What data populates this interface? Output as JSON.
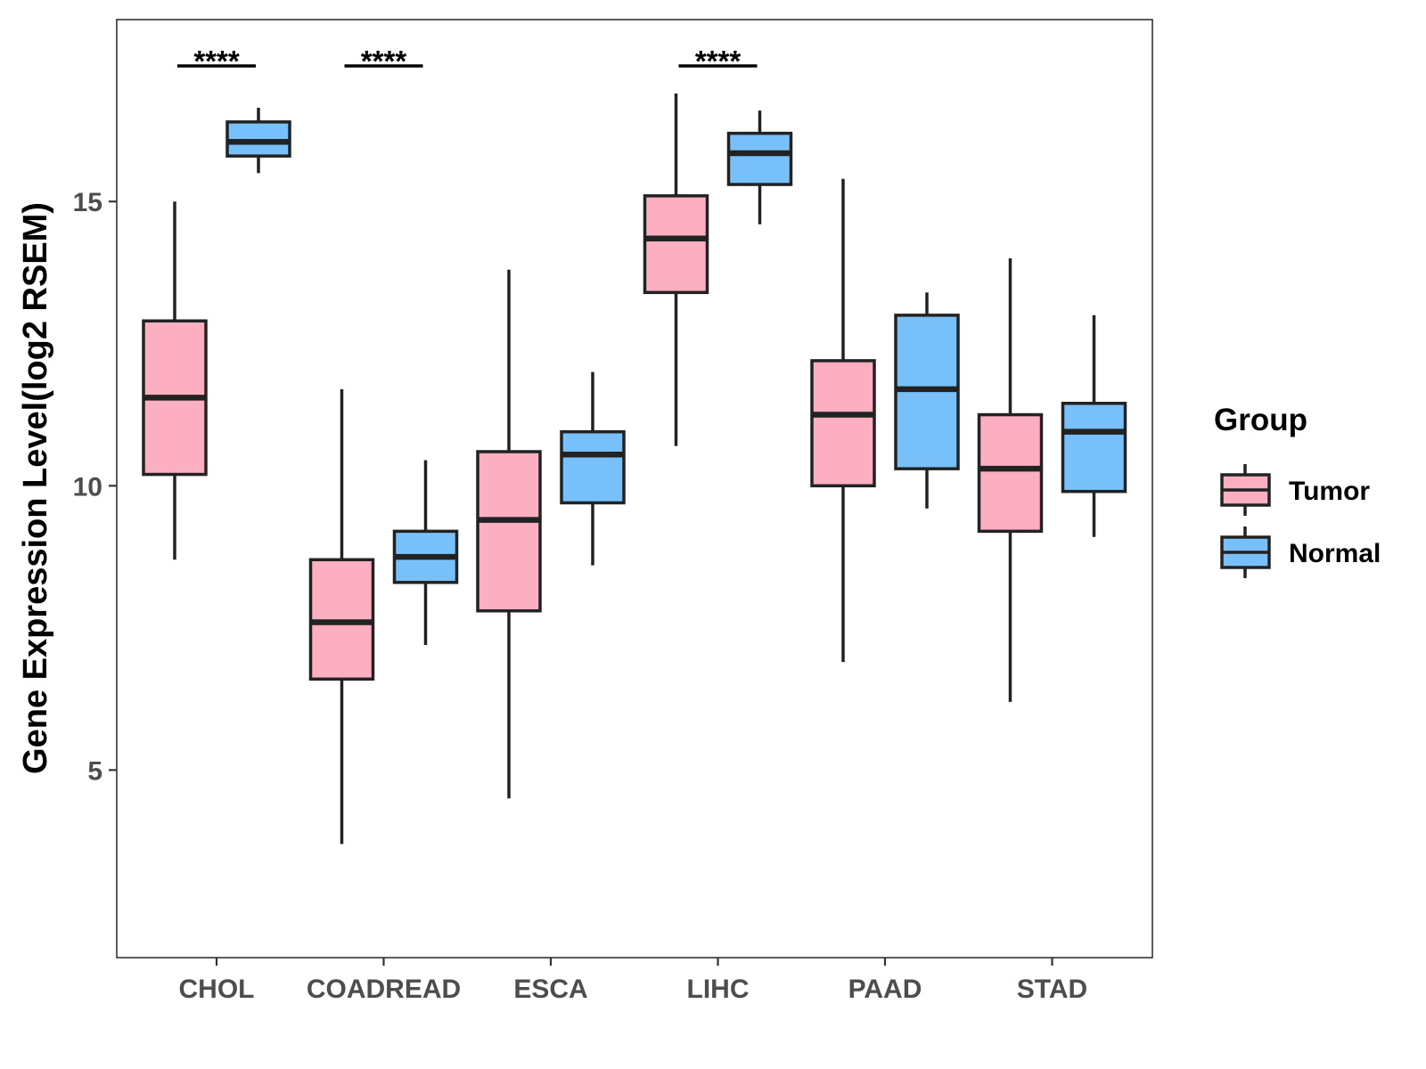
{
  "chart_data": {
    "type": "boxplot",
    "title": "",
    "xlabel": "",
    "ylabel": "Gene Expression Level(log2 RSEM)",
    "ylim": [
      1.7,
      18.2
    ],
    "yticks": [
      5,
      10,
      15
    ],
    "categories": [
      "CHOL",
      "COADREAD",
      "ESCA",
      "LIHC",
      "PAAD",
      "STAD"
    ],
    "legend": {
      "title": "Group",
      "position": "right",
      "entries": [
        {
          "name": "Tumor",
          "color": "#fbafc1"
        },
        {
          "name": "Normal",
          "color": "#77c0f9"
        }
      ]
    },
    "series": [
      {
        "name": "Tumor",
        "color": "#fbafc1",
        "boxes": [
          {
            "category": "CHOL",
            "min": 8.7,
            "q1": 10.2,
            "median": 11.55,
            "q3": 12.9,
            "max": 15.0
          },
          {
            "category": "COADREAD",
            "min": 3.7,
            "q1": 6.6,
            "median": 7.6,
            "q3": 8.7,
            "max": 11.7
          },
          {
            "category": "ESCA",
            "min": 4.5,
            "q1": 7.8,
            "median": 9.4,
            "q3": 10.6,
            "max": 13.8
          },
          {
            "category": "LIHC",
            "min": 10.7,
            "q1": 13.4,
            "median": 14.35,
            "q3": 15.1,
            "max": 16.9
          },
          {
            "category": "PAAD",
            "min": 6.9,
            "q1": 10.0,
            "median": 11.25,
            "q3": 12.2,
            "max": 15.4
          },
          {
            "category": "STAD",
            "min": 6.2,
            "q1": 9.2,
            "median": 10.3,
            "q3": 11.25,
            "max": 14.0
          }
        ]
      },
      {
        "name": "Normal",
        "color": "#77c0f9",
        "boxes": [
          {
            "category": "CHOL",
            "min": 15.5,
            "q1": 15.8,
            "median": 16.05,
            "q3": 16.4,
            "max": 16.65
          },
          {
            "category": "COADREAD",
            "min": 7.2,
            "q1": 8.3,
            "median": 8.75,
            "q3": 9.2,
            "max": 10.45
          },
          {
            "category": "ESCA",
            "min": 8.6,
            "q1": 9.7,
            "median": 10.55,
            "q3": 10.95,
            "max": 12.0
          },
          {
            "category": "LIHC",
            "min": 14.6,
            "q1": 15.3,
            "median": 15.85,
            "q3": 16.2,
            "max": 16.6
          },
          {
            "category": "PAAD",
            "min": 9.6,
            "q1": 10.3,
            "median": 11.7,
            "q3": 13.0,
            "max": 13.4
          },
          {
            "category": "STAD",
            "min": 9.1,
            "q1": 9.9,
            "median": 10.95,
            "q3": 11.45,
            "max": 13.0
          }
        ]
      }
    ],
    "annotations": [
      {
        "category": "CHOL",
        "label": "****"
      },
      {
        "category": "COADREAD",
        "label": "****"
      },
      {
        "category": "LIHC",
        "label": "****"
      }
    ]
  }
}
